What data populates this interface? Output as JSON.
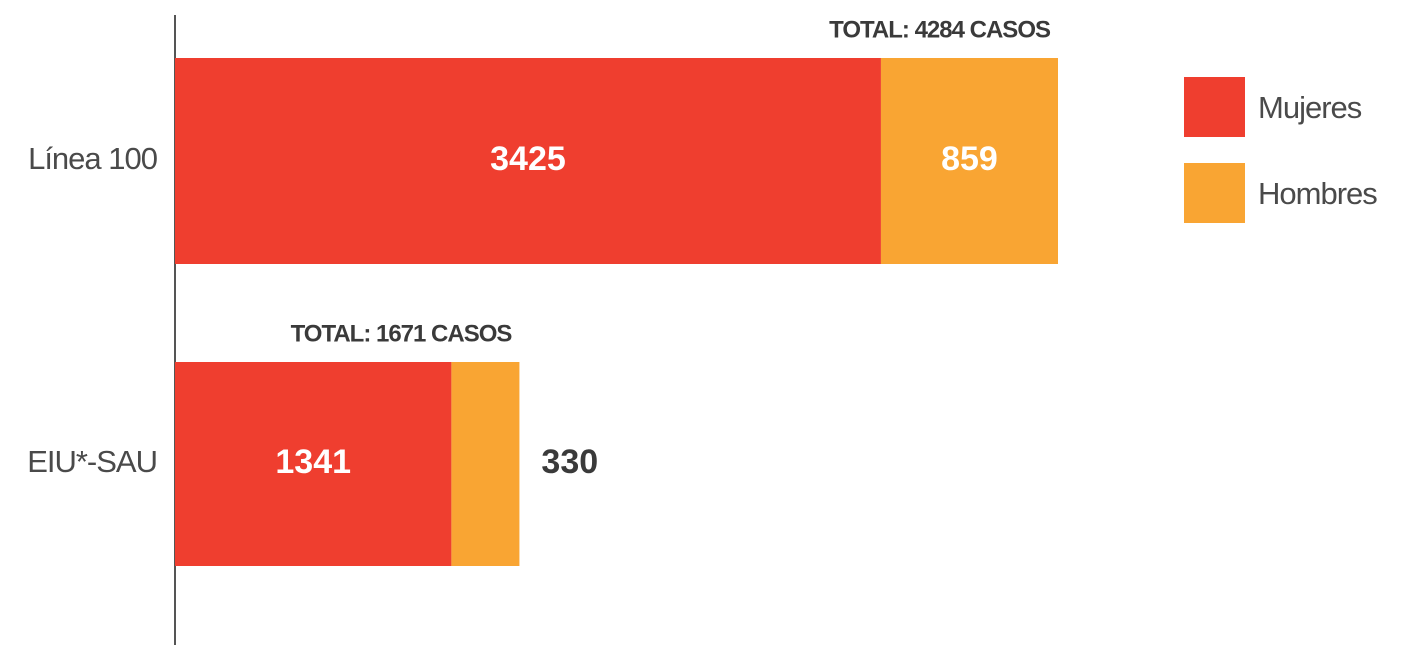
{
  "chart_data": {
    "type": "stacked_bar_horizontal",
    "categories": [
      "Línea 100",
      "EIU*-SAU"
    ],
    "series": [
      {
        "name": "Mujeres",
        "color": "#ef3e2f",
        "values": [
          3425,
          1341
        ]
      },
      {
        "name": "Hombres",
        "color": "#f9a533",
        "values": [
          859,
          330
        ]
      }
    ],
    "annotations": [
      "TOTAL: 4284 CASOS",
      "TOTAL: 1671 CASOS"
    ]
  }
}
